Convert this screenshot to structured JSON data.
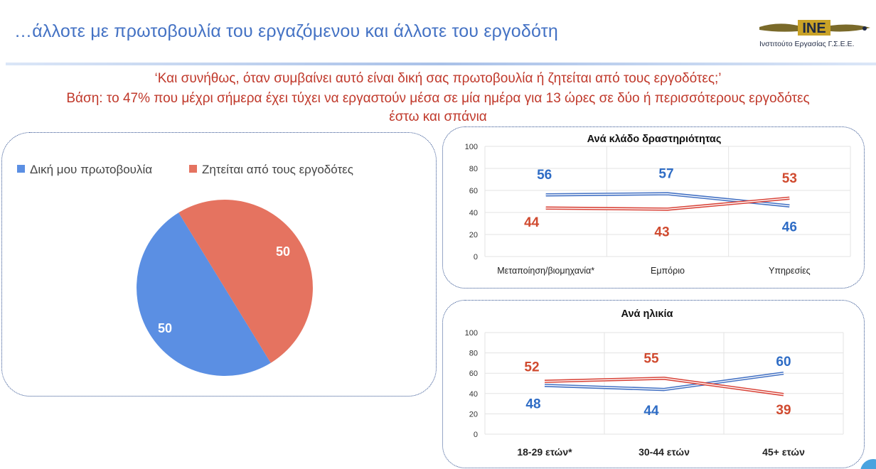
{
  "header": {
    "title": "…άλλοτε με πρωτοβουλία του εργαζόμενου και άλλοτε του εργοδότη",
    "logo_org": "Ινστιτούτο Εργασίας Γ.Σ.Ε.Ε."
  },
  "question": {
    "line1": "‘Και συνήθως, όταν συμβαίνει αυτό είναι δική σας πρωτοβουλία ή ζητείται από τους εργοδότες;’",
    "line2": "Βάση: το 47% που μέχρι σήμερα έχει τύχει να εργαστούν μέσα σε μία ημέρα για 13 ώρες σε δύο ή περισσότερους εργοδότες",
    "line3": "έστω και σπάνια"
  },
  "colors": {
    "blue": "#4472c4",
    "pie_blue": "#5b8fe3",
    "red": "#e57360",
    "red_line": "#d9453a",
    "label_blue": "#2e6cc5",
    "label_red": "#d04a2f"
  },
  "chart_data": [
    {
      "type": "pie",
      "title": "",
      "legend_position": "top-left",
      "series": [
        {
          "name": "Δική μου πρωτοβουλία",
          "value": 50
        },
        {
          "name": "Ζητείται από τους εργοδότες",
          "value": 50
        }
      ]
    },
    {
      "type": "line",
      "title": "Ανά κλάδο δραστηριότητας",
      "categories": [
        "Μεταποίηση/βιομηχανία*",
        "Εμπόριο",
        "Υπηρεσίες"
      ],
      "ylim": [
        0,
        100
      ],
      "yticks": [
        0,
        20,
        40,
        60,
        80,
        100
      ],
      "grid": true,
      "series": [
        {
          "name": "Δική μου πρωτοβουλία",
          "values": [
            56,
            57,
            46
          ]
        },
        {
          "name": "Ζητείται από τους εργοδότες",
          "values": [
            44,
            43,
            53
          ]
        }
      ]
    },
    {
      "type": "line",
      "title": "Ανά ηλικία",
      "categories": [
        "18-29 ετών*",
        "30-44 ετών",
        "45+ ετών"
      ],
      "ylim": [
        0,
        100
      ],
      "yticks": [
        0,
        20,
        40,
        60,
        80,
        100
      ],
      "grid": true,
      "series": [
        {
          "name": "Δική μου πρωτοβουλία",
          "values": [
            48,
            44,
            60
          ]
        },
        {
          "name": "Ζητείται από τους εργοδότες",
          "values": [
            52,
            55,
            39
          ]
        }
      ]
    }
  ]
}
